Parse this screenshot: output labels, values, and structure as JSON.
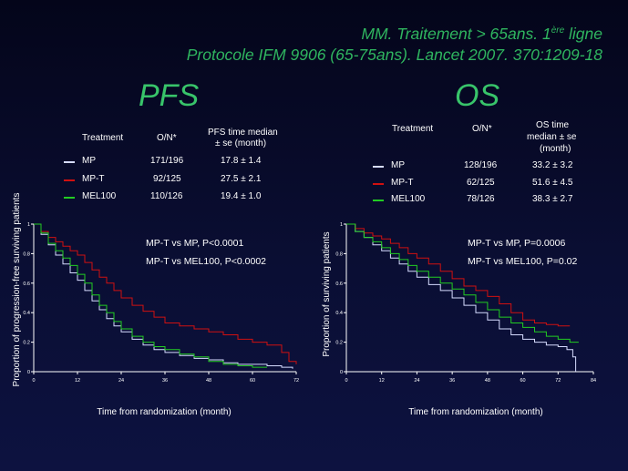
{
  "header": {
    "line1_main": "MM. Traitement > 65ans. 1",
    "line1_sup": "ère",
    "line1_tail": " ligne",
    "line2": "Protocole IFM 9906 (65-75ans). Lancet 2007. 370:1209-18"
  },
  "colors": {
    "mp": "#d6dcff",
    "mpt": "#d01010",
    "mel100": "#22cc22",
    "title": "#38c46a"
  },
  "pfs": {
    "title": "PFS",
    "table": {
      "col_treatment": "Treatment",
      "col_on": "O/N*",
      "col_median_1": "PFS time median",
      "col_median_2": "± se (month)",
      "rows": [
        {
          "treatment": "MP",
          "on": "171/196",
          "median": "17.8 ± 1.4"
        },
        {
          "treatment": "MP-T",
          "on": "92/125",
          "median": "27.5 ± 2.1"
        },
        {
          "treatment": "MEL100",
          "on": "110/126",
          "median": "19.4 ± 1.0"
        }
      ]
    },
    "note1": "MP-T vs MP, P<0.0001",
    "note2": "MP-T vs MEL100, P<0.0002"
  },
  "os": {
    "title": "OS",
    "table": {
      "col_treatment": "Treatment",
      "col_on": "O/N*",
      "col_median_1": "OS time",
      "col_median_2": "median ± se",
      "col_median_3": "(month)",
      "rows": [
        {
          "treatment": "MP",
          "on": "128/196",
          "median": "33.2 ± 3.2"
        },
        {
          "treatment": "MP-T",
          "on": "62/125",
          "median": "51.6 ± 4.5"
        },
        {
          "treatment": "MEL100",
          "on": "78/126",
          "median": "38.3 ± 2.7"
        }
      ]
    },
    "note1": "MP-T vs MP, P=0.0006",
    "note2": "MP-T vs MEL100, P=0.02"
  },
  "chart_data": [
    {
      "type": "line",
      "title": "",
      "xlabel": "Time from randomization (month)",
      "ylabel": "Proportion of progression-free surviving patients",
      "xlim": [
        0,
        72
      ],
      "ylim": [
        0,
        1
      ],
      "xticks": [
        0,
        12,
        24,
        36,
        48,
        60,
        72
      ],
      "yticks": [
        0,
        0.2,
        0.4,
        0.6,
        0.8,
        1
      ],
      "ytick_labels": [
        "0",
        "0.2",
        "0.4",
        "0.6",
        "0.8",
        "1"
      ],
      "step": true,
      "series": [
        {
          "name": "MP",
          "color": "#d6dcff",
          "x": [
            0,
            2,
            4,
            6,
            8,
            10,
            12,
            14,
            16,
            18,
            20,
            22,
            24,
            27,
            30,
            33,
            36,
            40,
            44,
            48,
            52,
            56,
            60,
            64,
            68,
            71
          ],
          "y": [
            1,
            0.93,
            0.86,
            0.79,
            0.73,
            0.67,
            0.62,
            0.55,
            0.48,
            0.42,
            0.36,
            0.31,
            0.27,
            0.22,
            0.18,
            0.15,
            0.13,
            0.11,
            0.09,
            0.08,
            0.06,
            0.05,
            0.05,
            0.04,
            0.03,
            0.02
          ]
        },
        {
          "name": "MP-T",
          "color": "#d01010",
          "x": [
            0,
            2,
            4,
            6,
            8,
            10,
            12,
            14,
            16,
            18,
            20,
            22,
            24,
            27,
            30,
            33,
            36,
            40,
            44,
            48,
            52,
            56,
            60,
            64,
            68,
            70,
            72
          ],
          "y": [
            1,
            0.95,
            0.91,
            0.88,
            0.85,
            0.82,
            0.79,
            0.74,
            0.69,
            0.64,
            0.6,
            0.55,
            0.5,
            0.45,
            0.41,
            0.37,
            0.33,
            0.31,
            0.29,
            0.27,
            0.25,
            0.22,
            0.2,
            0.18,
            0.13,
            0.07,
            0.05
          ]
        },
        {
          "name": "MEL100",
          "color": "#22cc22",
          "x": [
            0,
            2,
            4,
            6,
            8,
            10,
            12,
            14,
            16,
            18,
            20,
            22,
            24,
            27,
            30,
            33,
            36,
            40,
            44,
            48,
            52,
            56,
            60,
            64
          ],
          "y": [
            1,
            0.94,
            0.87,
            0.82,
            0.77,
            0.72,
            0.66,
            0.6,
            0.52,
            0.45,
            0.4,
            0.34,
            0.29,
            0.24,
            0.2,
            0.17,
            0.15,
            0.12,
            0.1,
            0.07,
            0.05,
            0.04,
            0.03,
            0.03
          ]
        }
      ]
    },
    {
      "type": "line",
      "title": "",
      "xlabel": "Time from randomization (month)",
      "ylabel": "Proportion of surviving patients",
      "xlim": [
        0,
        84
      ],
      "ylim": [
        0,
        1
      ],
      "xticks": [
        0,
        12,
        24,
        36,
        48,
        60,
        72,
        84
      ],
      "yticks": [
        0,
        0.2,
        0.4,
        0.6,
        0.8,
        1
      ],
      "ytick_labels": [
        "0",
        "0.2",
        "0.4",
        "0.6",
        "0.8",
        "1"
      ],
      "step": true,
      "series": [
        {
          "name": "MP",
          "color": "#d6dcff",
          "x": [
            0,
            3,
            6,
            9,
            12,
            15,
            18,
            21,
            24,
            28,
            32,
            36,
            40,
            44,
            48,
            52,
            56,
            60,
            64,
            68,
            72,
            75,
            77,
            78
          ],
          "y": [
            1,
            0.95,
            0.91,
            0.86,
            0.82,
            0.77,
            0.73,
            0.68,
            0.64,
            0.59,
            0.55,
            0.5,
            0.45,
            0.4,
            0.35,
            0.29,
            0.25,
            0.22,
            0.2,
            0.18,
            0.17,
            0.15,
            0.1,
            0.0
          ]
        },
        {
          "name": "MP-T",
          "color": "#d01010",
          "x": [
            0,
            3,
            6,
            9,
            12,
            15,
            18,
            21,
            24,
            28,
            32,
            36,
            40,
            44,
            48,
            52,
            56,
            60,
            64,
            68,
            72,
            75,
            76
          ],
          "y": [
            1,
            0.97,
            0.94,
            0.92,
            0.9,
            0.87,
            0.84,
            0.8,
            0.77,
            0.73,
            0.68,
            0.63,
            0.58,
            0.55,
            0.51,
            0.46,
            0.4,
            0.35,
            0.33,
            0.32,
            0.31,
            0.31,
            0.31
          ]
        },
        {
          "name": "MEL100",
          "color": "#22cc22",
          "x": [
            0,
            3,
            6,
            9,
            12,
            15,
            18,
            21,
            24,
            28,
            32,
            36,
            40,
            44,
            48,
            52,
            56,
            60,
            64,
            68,
            72,
            76,
            79
          ],
          "y": [
            1,
            0.95,
            0.91,
            0.88,
            0.84,
            0.8,
            0.76,
            0.72,
            0.68,
            0.64,
            0.6,
            0.56,
            0.52,
            0.47,
            0.42,
            0.37,
            0.33,
            0.3,
            0.27,
            0.24,
            0.22,
            0.2,
            0.2
          ]
        }
      ]
    }
  ]
}
